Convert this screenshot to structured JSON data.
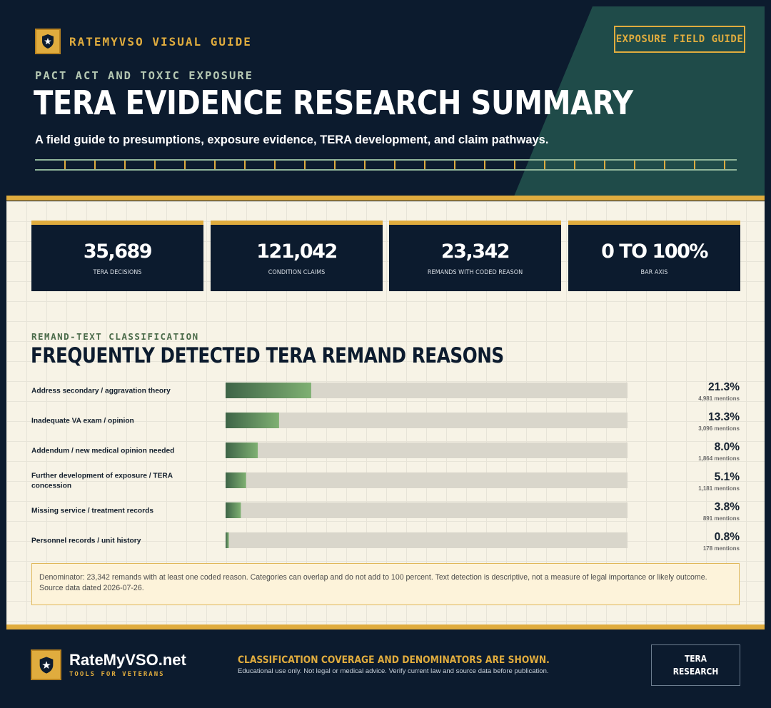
{
  "header": {
    "brand": "RATEMYVSO VISUAL GUIDE",
    "guide_button": "EXPOSURE FIELD GUIDE",
    "eyebrow": "PACT ACT AND TOXIC EXPOSURE",
    "title": "TERA EVIDENCE RESEARCH SUMMARY",
    "subtitle": "A field guide to presumptions, exposure evidence, TERA development, and claim pathways."
  },
  "stats": [
    {
      "value": "35,689",
      "label": "TERA DECISIONS"
    },
    {
      "value": "121,042",
      "label": "CONDITION CLAIMS"
    },
    {
      "value": "23,342",
      "label": "REMANDS WITH CODED REASON"
    },
    {
      "value": "0 TO 100%",
      "label": "BAR AXIS"
    }
  ],
  "section": {
    "eyebrow": "REMAND-TEXT CLASSIFICATION",
    "title": "FREQUENTLY DETECTED TERA REMAND REASONS"
  },
  "chart_data": {
    "type": "bar",
    "orientation": "horizontal",
    "title": "FREQUENTLY DETECTED TERA REMAND REASONS",
    "xlim": [
      0,
      100
    ],
    "categories": [
      "Address secondary / aggravation theory",
      "Inadequate VA exam / opinion",
      "Addendum / new medical opinion needed",
      "Further development of exposure / TERA concession",
      "Missing service / treatment records",
      "Personnel records / unit history"
    ],
    "values": [
      21.3,
      13.3,
      8.0,
      5.1,
      3.8,
      0.8
    ],
    "value_labels": [
      "21.3%",
      "13.3%",
      "8.0%",
      "5.1%",
      "3.8%",
      "0.8%"
    ],
    "mentions": [
      "4,981 mentions",
      "3,096 mentions",
      "1,864 mentions",
      "1,181 mentions",
      "891 mentions",
      "178 mentions"
    ],
    "colors": {
      "bar_start": "#3e6447",
      "bar_end": "#7fb072",
      "track": "#d9d6cb"
    }
  },
  "note": "Denominator: 23,342 remands with at least one coded reason. Categories can overlap and do not add to 100 percent. Text detection is descriptive, not a measure of legal importance or likely outcome. Source data dated 2026-07-26.",
  "footer": {
    "site": "RateMyVSO.net",
    "tagline": "TOOLS FOR VETERANS",
    "headline": "CLASSIFICATION COVERAGE AND DENOMINATORS ARE SHOWN.",
    "disclaimer": "Educational use only. Not legal or medical advice. Verify current law and source data before publication.",
    "box_line1": "TERA",
    "box_line2": "RESEARCH"
  },
  "colors": {
    "navy": "#0c1b2e",
    "gold": "#e0ac3e",
    "teal": "#1f4b49",
    "cream": "#f7f3e6"
  },
  "icons": {
    "brand": "shield-star-icon"
  }
}
